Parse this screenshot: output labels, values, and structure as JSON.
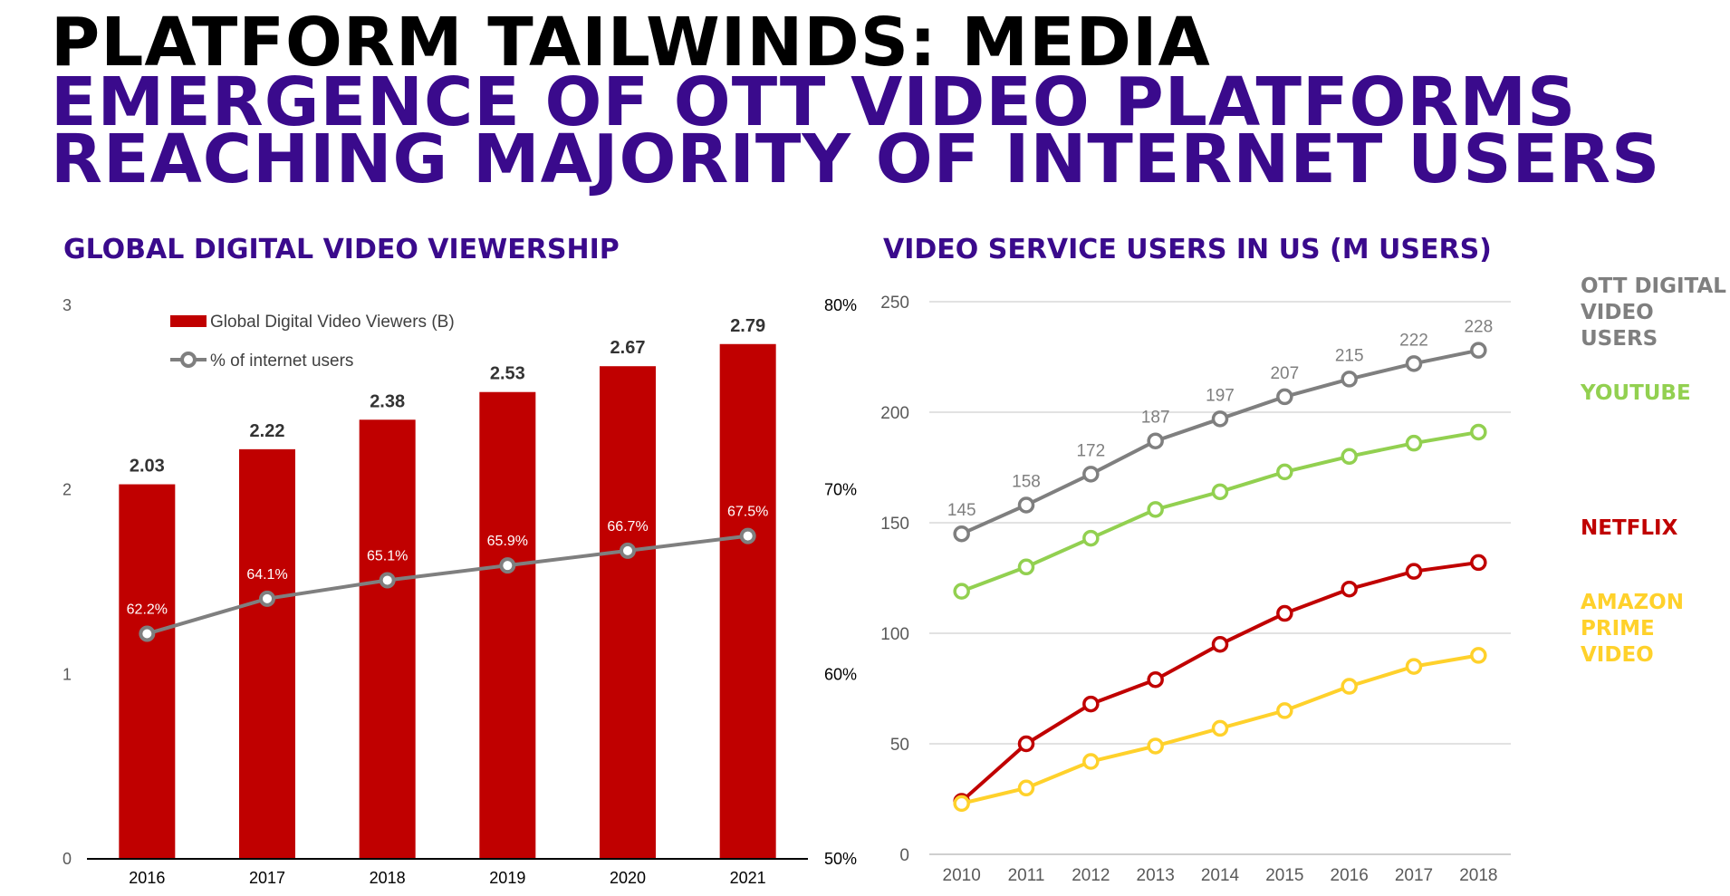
{
  "headline": {
    "line1": "PLATFORM TAILWINDS: MEDIA",
    "line2": "EMERGENCE OF OTT VIDEO PLATFORMS",
    "line3": "REACHING MAJORITY OF INTERNET USERS"
  },
  "colors": {
    "title_black": "#000000",
    "title_purple": "#3a0a8c",
    "bar_red": "#c00000",
    "gray_line": "#7f7f7f",
    "youtube_green": "#92d050",
    "netflix_red": "#c00000",
    "amazon_yellow": "#ffd12b"
  },
  "chart_data": [
    {
      "type": "bar",
      "title": "GLOBAL DIGITAL VIDEO VIEWERSHIP",
      "categories": [
        "2016",
        "2017",
        "2018",
        "2019",
        "2020",
        "2021"
      ],
      "series": [
        {
          "name": "Global Digital Video Viewers (B)",
          "type": "bar",
          "axis": "left",
          "values": [
            2.03,
            2.22,
            2.38,
            2.53,
            2.67,
            2.79
          ],
          "labels": [
            "2.03",
            "2.22",
            "2.38",
            "2.53",
            "2.67",
            "2.79"
          ]
        },
        {
          "name": "% of internet users",
          "type": "line",
          "axis": "right",
          "values": [
            62.2,
            64.1,
            65.1,
            65.9,
            66.7,
            67.5
          ],
          "labels": [
            "62.2%",
            "64.1%",
            "65.1%",
            "65.9%",
            "66.7%",
            "67.5%"
          ]
        }
      ],
      "y_left": {
        "range": [
          0,
          3
        ],
        "ticks": [
          "0",
          "1",
          "2",
          "3"
        ]
      },
      "y_right": {
        "range": [
          50,
          80
        ],
        "ticks": [
          "50%",
          "60%",
          "70%",
          "80%"
        ]
      },
      "grid": false,
      "legend_position": "top-left"
    },
    {
      "type": "line",
      "title": "VIDEO SERVICE USERS IN US (M USERS)",
      "x": [
        "2010",
        "2011",
        "2012",
        "2013",
        "2014",
        "2015",
        "2016",
        "2017",
        "2018"
      ],
      "series": [
        {
          "name": "OTT DIGITAL VIDEO USERS",
          "label_text": "OTT DIGITAL\nVIDEO\nUSERS",
          "values": [
            145,
            158,
            172,
            187,
            197,
            207,
            215,
            222,
            228
          ],
          "labels": [
            "145",
            "158",
            "172",
            "187",
            "197",
            "207",
            "215",
            "222",
            "228"
          ],
          "color": "#7f7f7f"
        },
        {
          "name": "YOUTUBE",
          "label_text": "YOUTUBE",
          "values": [
            119,
            130,
            143,
            156,
            164,
            173,
            180,
            186,
            191
          ],
          "color": "#92d050"
        },
        {
          "name": "NETFLIX",
          "label_text": "NETFLIX",
          "values": [
            24,
            50,
            68,
            79,
            95,
            109,
            120,
            128,
            132
          ],
          "color": "#c00000"
        },
        {
          "name": "AMAZON PRIME VIDEO",
          "label_text": "AMAZON\nPRIME\nVIDEO",
          "values": [
            23,
            30,
            42,
            49,
            57,
            65,
            76,
            85,
            90
          ],
          "color": "#ffd12b"
        }
      ],
      "y": {
        "range": [
          0,
          250
        ],
        "ticks": [
          "0",
          "50",
          "100",
          "150",
          "200",
          "250"
        ]
      },
      "grid": true,
      "legend_position": "right"
    }
  ]
}
